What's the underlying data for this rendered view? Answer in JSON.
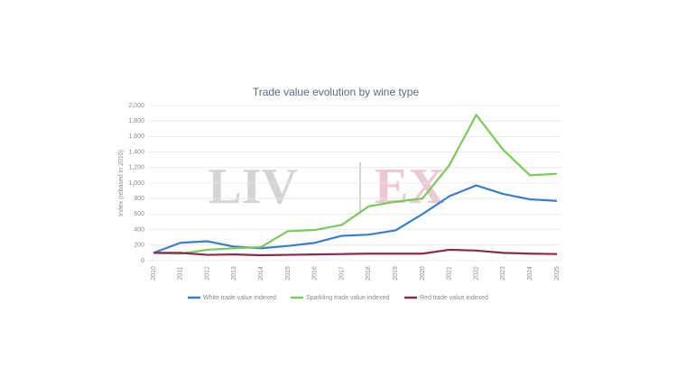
{
  "chart_data": {
    "type": "line",
    "title": "Trade value evolution by wine type",
    "y_label": "Index (rebased in 2010)",
    "watermark": [
      "LIV",
      "EX"
    ],
    "categories": [
      "2010",
      "2011",
      "2012",
      "2013",
      "2014",
      "2015",
      "2016",
      "2017",
      "2018",
      "2019",
      "2020",
      "2021",
      "2022",
      "2023",
      "2024",
      "2025"
    ],
    "series": [
      {
        "name": "White trade value indexed",
        "color": "#3a7dc9",
        "values": [
          100,
          230,
          250,
          180,
          160,
          190,
          230,
          320,
          335,
          390,
          600,
          830,
          970,
          860,
          790,
          770
        ]
      },
      {
        "name": "Sparkling trade value indexed",
        "color": "#7cc85a",
        "values": [
          100,
          90,
          140,
          160,
          175,
          380,
          395,
          460,
          700,
          760,
          800,
          1230,
          1880,
          1430,
          1100,
          1120
        ]
      },
      {
        "name": "Red trade value indexed",
        "color": "#8c2a4a",
        "values": [
          100,
          100,
          75,
          80,
          70,
          75,
          80,
          85,
          90,
          90,
          90,
          140,
          130,
          100,
          90,
          85
        ]
      }
    ],
    "ylim": [
      0,
      2000
    ],
    "yticks": [
      0,
      200,
      400,
      600,
      800,
      {
        "value": 1000,
        "label": "1,000"
      },
      {
        "value": 1200,
        "label": "1,200"
      },
      {
        "value": 1400,
        "label": "1,400"
      },
      {
        "value": 1600,
        "label": "1,600"
      },
      {
        "value": 1800,
        "label": "1,800"
      },
      {
        "value": 2000,
        "label": "2,000"
      }
    ],
    "grid": true
  }
}
